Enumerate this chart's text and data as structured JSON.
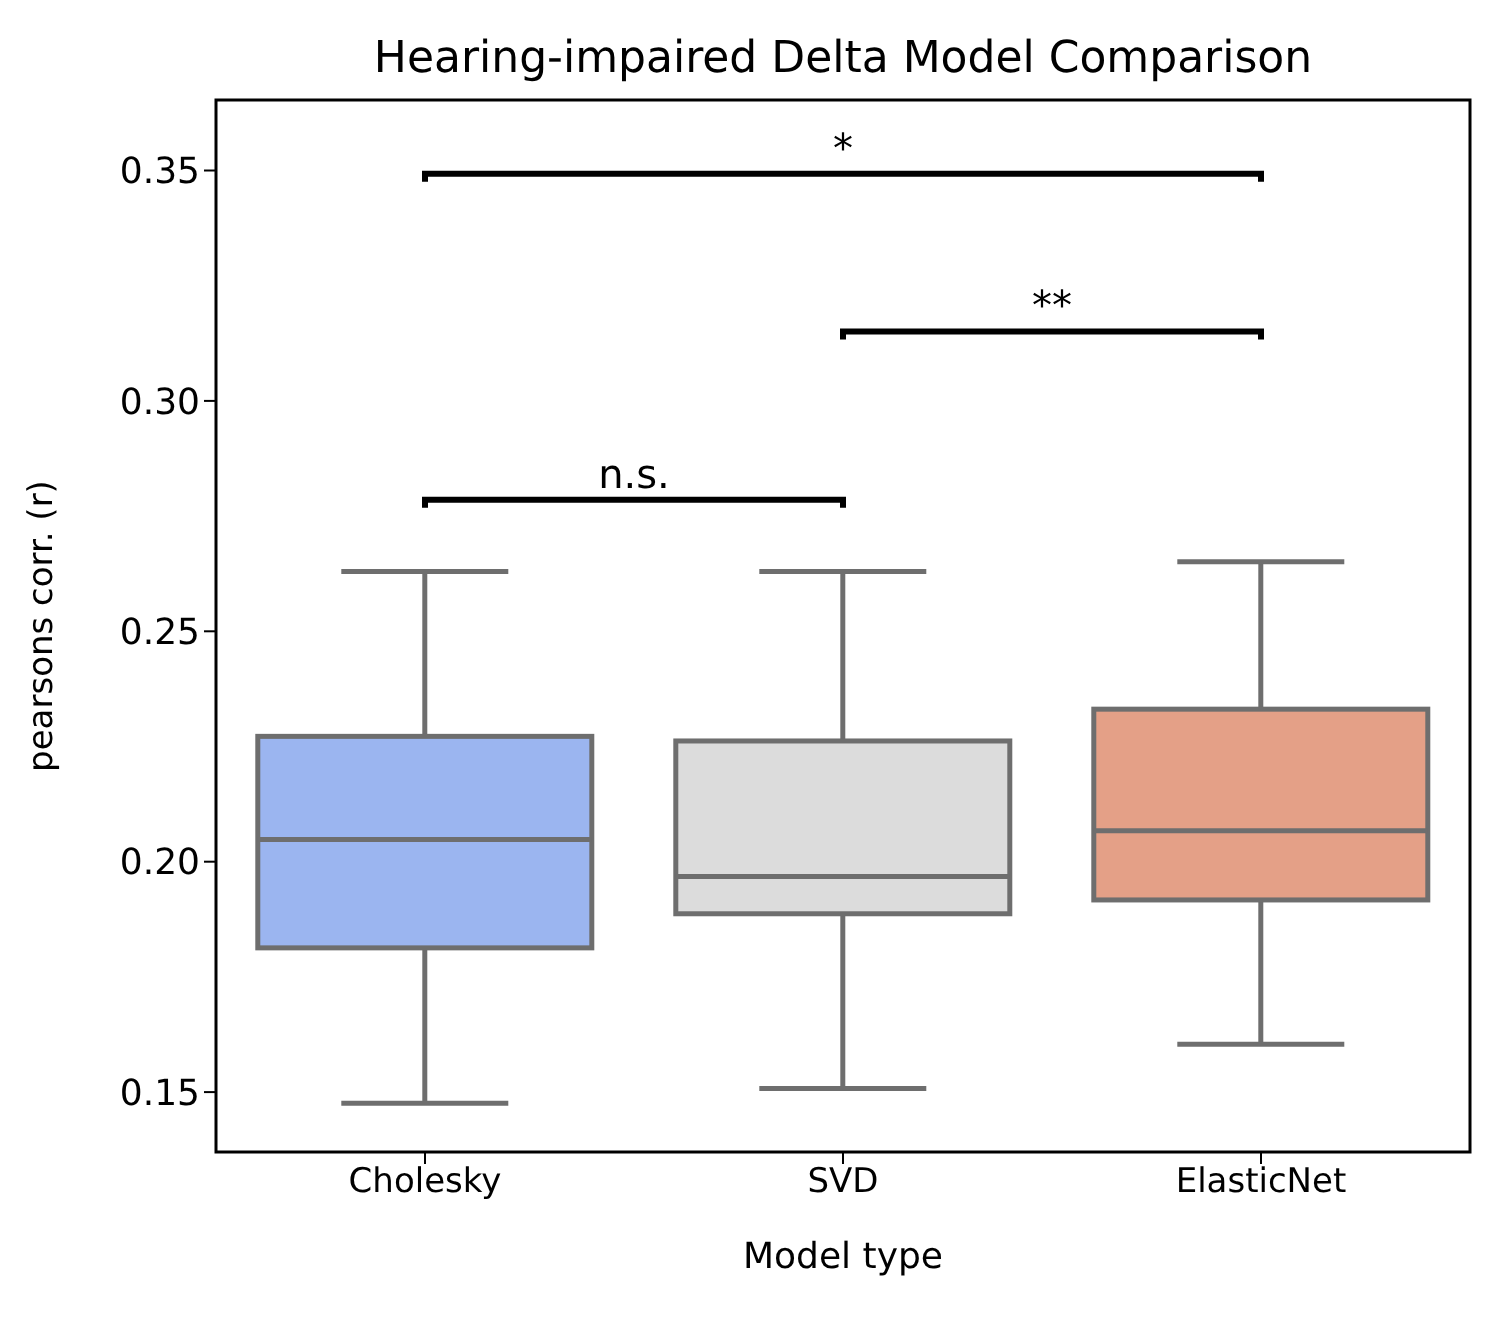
{
  "chart_data": {
    "type": "box",
    "title": "Hearing-impaired Delta Model Comparison",
    "xlabel": "Model type",
    "ylabel": "pearsons corr. (r)",
    "categories": [
      "Cholesky",
      "SVD",
      "ElasticNet"
    ],
    "colors": [
      "#9bb5f0",
      "#dcdcdc",
      "#e4a087"
    ],
    "boxes": [
      {
        "low": 0.1476,
        "q1": 0.1813,
        "median": 0.2048,
        "q3": 0.2272,
        "high": 0.263
      },
      {
        "low": 0.1508,
        "q1": 0.1887,
        "median": 0.1968,
        "q3": 0.2262,
        "high": 0.263
      },
      {
        "low": 0.1604,
        "q1": 0.1917,
        "median": 0.2067,
        "q3": 0.2331,
        "high": 0.2651
      }
    ],
    "ylim": [
      0.137,
      0.3653
    ],
    "yticks": [
      0.15,
      {
        "value": 0.2,
        "label": "0.20"
      },
      0.25,
      {
        "value": 0.3,
        "label": "0.30"
      },
      0.35
    ],
    "annotations": [
      "n.s.",
      "**",
      "*"
    ],
    "grid": false,
    "legend": false
  }
}
